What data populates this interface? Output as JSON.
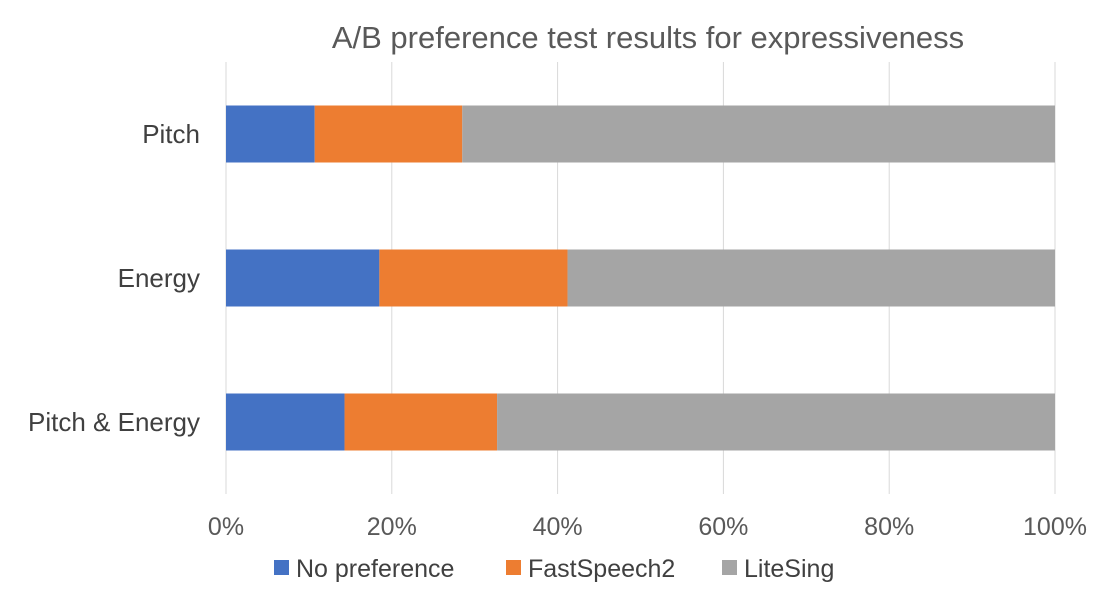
{
  "chart_data": {
    "type": "bar",
    "orientation": "horizontal",
    "stacked": true,
    "normalized": true,
    "title": "A/B preference test results for expressiveness",
    "categories": [
      "Pitch",
      "Energy",
      "Pitch & Energy"
    ],
    "series": [
      {
        "name": "No preference",
        "color": "#4472c4",
        "values": [
          10.7,
          18.5,
          14.3
        ]
      },
      {
        "name": "FastSpeech2",
        "color": "#ed7d31",
        "values": [
          17.8,
          22.7,
          18.4
        ]
      },
      {
        "name": "LiteSing",
        "color": "#a5a5a5",
        "values": [
          71.5,
          58.8,
          67.3
        ]
      }
    ],
    "xlim": [
      0,
      100
    ],
    "xticks": [
      "0%",
      "20%",
      "40%",
      "60%",
      "80%",
      "100%"
    ],
    "grid": true,
    "legend_position": "bottom"
  }
}
